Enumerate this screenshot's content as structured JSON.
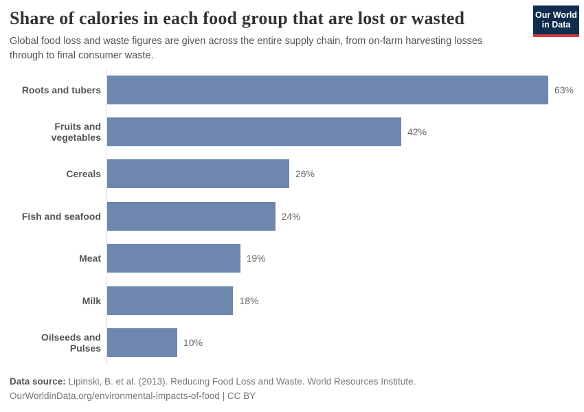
{
  "header": {
    "title": "Share of calories in each food group that are lost or wasted",
    "subtitle": "Global food loss and waste figures are given across the entire supply chain, from on-farm harvesting losses through to final consumer waste."
  },
  "logo": {
    "line1": "Our World",
    "line2": "in Data",
    "bg_color": "#102d50",
    "accent_color": "#d13b3b"
  },
  "chart_data": {
    "type": "bar",
    "orientation": "horizontal",
    "title": "Share of calories in each food group that are lost or wasted",
    "categories": [
      "Roots and tubers",
      "Fruits and vegetables",
      "Cereals",
      "Fish and seafood",
      "Meat",
      "Milk",
      "Oilseeds and Pulses"
    ],
    "values": [
      63,
      42,
      26,
      24,
      19,
      18,
      10
    ],
    "value_labels": [
      "63%",
      "42%",
      "26%",
      "24%",
      "19%",
      "18%",
      "10%"
    ],
    "unit": "%",
    "xlim": [
      0,
      66
    ],
    "bar_color": "#6d87ae",
    "axis_line_color": "#dddddd",
    "grid": false,
    "legend": false
  },
  "footer": {
    "source_label": "Data source:",
    "source_text": " Lipinski, B. et al. (2013). Reducing Food Loss and Waste. World Resources Institute.",
    "note": "OurWorldinData.org/environmental-impacts-of-food | CC BY"
  }
}
